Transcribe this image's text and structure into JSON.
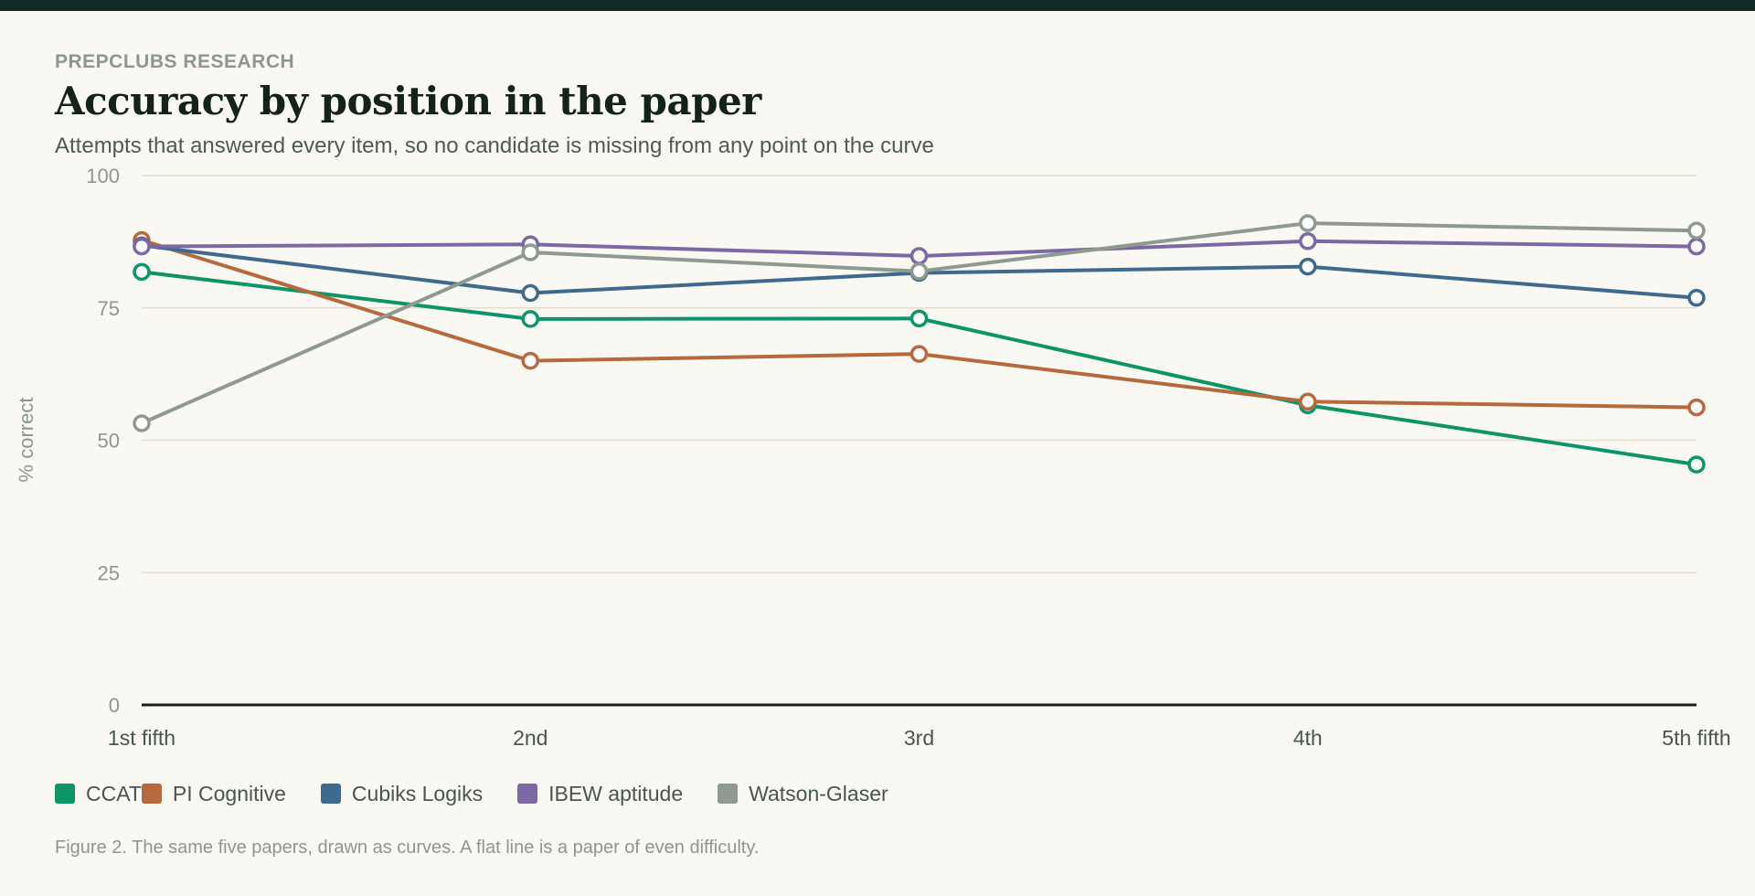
{
  "header": {
    "eyebrow": "PREPCLUBS RESEARCH",
    "title": "Accuracy by position in the paper",
    "subtitle": "Attempts that answered every item, so no candidate is missing from any point on the curve"
  },
  "caption": "Figure 2. The same five papers, drawn as curves. A flat line is a paper of even difficulty.",
  "chart_data": {
    "type": "line",
    "title": "Accuracy by position in the paper",
    "xlabel": "",
    "ylabel": "% correct",
    "ylim": [
      0,
      100
    ],
    "yticks": [
      0,
      25,
      50,
      75,
      100
    ],
    "grid": true,
    "legend": "bottom-left",
    "categories": [
      "1st fifth",
      "2nd",
      "3rd",
      "4th",
      "5th fifth"
    ],
    "series": [
      {
        "name": "CCAT",
        "color": "#0d9467",
        "values": [
          81.8,
          72.9,
          73.0,
          56.6,
          45.4
        ]
      },
      {
        "name": "PI Cognitive",
        "color": "#b5693d",
        "values": [
          87.8,
          65.0,
          66.3,
          57.3,
          56.2
        ]
      },
      {
        "name": "Cubiks Logiks",
        "color": "#3f6a8c",
        "values": [
          86.8,
          77.8,
          81.6,
          82.8,
          76.9
        ]
      },
      {
        "name": "IBEW aptitude",
        "color": "#7c68a4",
        "values": [
          86.6,
          87.0,
          84.8,
          87.6,
          86.6
        ]
      },
      {
        "name": "Watson-Glaser",
        "color": "#8e9a90",
        "values": [
          53.2,
          85.5,
          81.9,
          91.0,
          89.6
        ]
      }
    ]
  }
}
